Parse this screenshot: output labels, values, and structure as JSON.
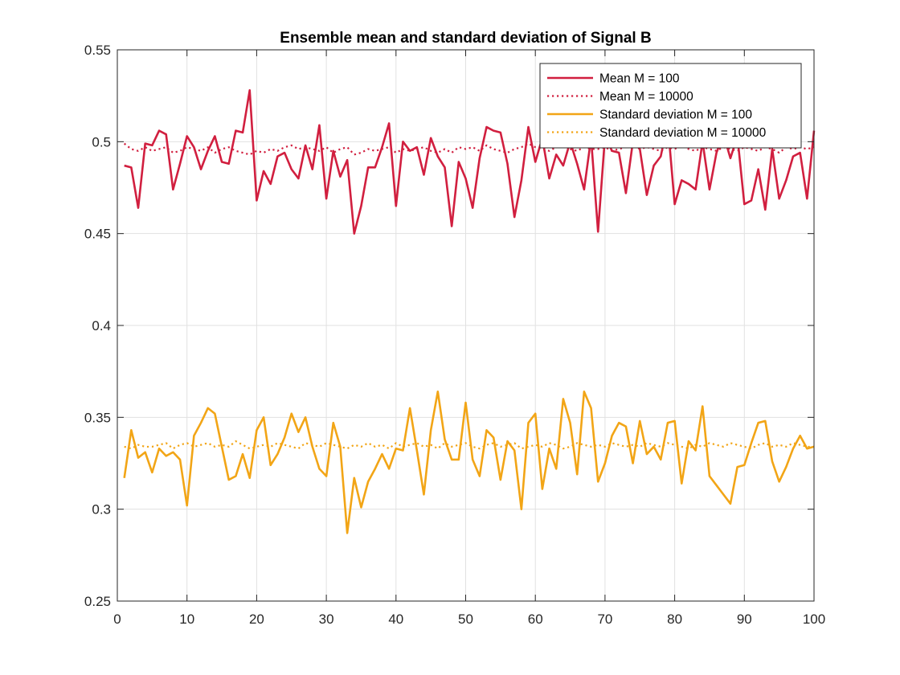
{
  "chart_data": {
    "type": "line",
    "title": "Ensemble mean and standard deviation of Signal B",
    "xlabel": "",
    "ylabel": "",
    "xlim": [
      0,
      100
    ],
    "ylim": [
      0.25,
      0.55
    ],
    "xticks": [
      0,
      10,
      20,
      30,
      40,
      50,
      60,
      70,
      80,
      90,
      100
    ],
    "yticks": [
      0.25,
      0.3,
      0.35,
      0.4,
      0.45,
      0.5,
      0.55
    ],
    "xtick_labels": [
      "0",
      "10",
      "20",
      "30",
      "40",
      "50",
      "60",
      "70",
      "80",
      "90",
      "100"
    ],
    "ytick_labels": [
      "0.25",
      "0.3",
      "0.35",
      "0.4",
      "0.45",
      "0.5",
      "0.55"
    ],
    "grid": true,
    "legend_position": "top-right",
    "x": [
      1,
      2,
      3,
      4,
      5,
      6,
      7,
      8,
      9,
      10,
      11,
      12,
      13,
      14,
      15,
      16,
      17,
      18,
      19,
      20,
      21,
      22,
      23,
      24,
      25,
      26,
      27,
      28,
      29,
      30,
      31,
      32,
      33,
      34,
      35,
      36,
      37,
      38,
      39,
      40,
      41,
      42,
      43,
      44,
      45,
      46,
      47,
      48,
      49,
      50,
      51,
      52,
      53,
      54,
      55,
      56,
      57,
      58,
      59,
      60,
      61,
      62,
      63,
      64,
      65,
      66,
      67,
      68,
      69,
      70,
      71,
      72,
      73,
      74,
      75,
      76,
      77,
      78,
      79,
      80,
      81,
      82,
      83,
      84,
      85,
      86,
      87,
      88,
      89,
      90,
      91,
      92,
      93,
      94,
      95,
      96,
      97,
      98,
      99,
      100
    ],
    "series": [
      {
        "name": "Mean M = 100",
        "color": "#d11f3f",
        "style": "solid",
        "values": [
          0.487,
          0.486,
          0.464,
          0.499,
          0.498,
          0.506,
          0.504,
          0.474,
          0.488,
          0.503,
          0.497,
          0.485,
          0.495,
          0.503,
          0.489,
          0.488,
          0.506,
          0.505,
          0.528,
          0.468,
          0.484,
          0.477,
          0.492,
          0.494,
          0.485,
          0.48,
          0.498,
          0.485,
          0.509,
          0.469,
          0.495,
          0.481,
          0.49,
          0.45,
          0.465,
          0.486,
          0.486,
          0.497,
          0.51,
          0.465,
          0.5,
          0.495,
          0.497,
          0.482,
          0.502,
          0.492,
          0.486,
          0.454,
          0.489,
          0.48,
          0.464,
          0.491,
          0.508,
          0.506,
          0.505,
          0.488,
          0.459,
          0.479,
          0.508,
          0.489,
          0.502,
          0.48,
          0.493,
          0.487,
          0.5,
          0.488,
          0.474,
          0.502,
          0.451,
          0.503,
          0.495,
          0.494,
          0.472,
          0.5,
          0.496,
          0.471,
          0.487,
          0.492,
          0.51,
          0.466,
          0.479,
          0.477,
          0.474,
          0.5,
          0.474,
          0.494,
          0.504,
          0.491,
          0.503,
          0.466,
          0.468,
          0.485,
          0.463,
          0.496,
          0.469,
          0.479,
          0.492,
          0.494,
          0.469,
          0.506
        ]
      },
      {
        "name": "Mean M = 10000",
        "color": "#d11f3f",
        "style": "dotted",
        "values": [
          0.499,
          0.496,
          0.495,
          0.497,
          0.495,
          0.496,
          0.497,
          0.494,
          0.495,
          0.497,
          0.496,
          0.495,
          0.497,
          0.494,
          0.496,
          0.497,
          0.495,
          0.494,
          0.493,
          0.495,
          0.494,
          0.496,
          0.495,
          0.497,
          0.498,
          0.496,
          0.497,
          0.496,
          0.495,
          0.497,
          0.494,
          0.496,
          0.497,
          0.493,
          0.494,
          0.496,
          0.495,
          0.496,
          0.497,
          0.494,
          0.496,
          0.495,
          0.496,
          0.497,
          0.495,
          0.494,
          0.496,
          0.494,
          0.497,
          0.496,
          0.497,
          0.495,
          0.498,
          0.496,
          0.495,
          0.494,
          0.496,
          0.497,
          0.499,
          0.497,
          0.496,
          0.495,
          0.497,
          0.498,
          0.496,
          0.495,
          0.497,
          0.496,
          0.496,
          0.497,
          0.495,
          0.496,
          0.497,
          0.498,
          0.496,
          0.497,
          0.496,
          0.495,
          0.497,
          0.496,
          0.498,
          0.496,
          0.495,
          0.497,
          0.496,
          0.495,
          0.497,
          0.496,
          0.495,
          0.497,
          0.496,
          0.495,
          0.497,
          0.496,
          0.494,
          0.497,
          0.496,
          0.497,
          0.496,
          0.497
        ]
      },
      {
        "name": "Standard deviation M = 100",
        "color": "#f2a516",
        "style": "solid",
        "values": [
          0.317,
          0.343,
          0.328,
          0.331,
          0.32,
          0.333,
          0.329,
          0.331,
          0.327,
          0.302,
          0.34,
          0.347,
          0.355,
          0.352,
          0.334,
          0.316,
          0.318,
          0.33,
          0.317,
          0.343,
          0.35,
          0.324,
          0.33,
          0.339,
          0.352,
          0.342,
          0.35,
          0.334,
          0.322,
          0.318,
          0.347,
          0.334,
          0.287,
          0.317,
          0.301,
          0.315,
          0.322,
          0.33,
          0.322,
          0.333,
          0.332,
          0.355,
          0.332,
          0.308,
          0.343,
          0.364,
          0.338,
          0.327,
          0.327,
          0.358,
          0.327,
          0.318,
          0.343,
          0.339,
          0.316,
          0.337,
          0.332,
          0.3,
          0.347,
          0.352,
          0.311,
          0.333,
          0.322,
          0.36,
          0.347,
          0.319,
          0.364,
          0.355,
          0.315,
          0.325,
          0.34,
          0.347,
          0.345,
          0.325,
          0.348,
          0.33,
          0.334,
          0.327,
          0.347,
          0.348,
          0.314,
          0.337,
          0.332,
          0.356,
          0.318,
          0.313,
          0.308,
          0.303,
          0.323,
          0.324,
          0.336,
          0.347,
          0.348,
          0.326,
          0.315,
          0.323,
          0.333,
          0.34,
          0.333,
          0.334
        ]
      },
      {
        "name": "Standard deviation M = 10000",
        "color": "#f2a516",
        "style": "dotted",
        "values": [
          0.334,
          0.333,
          0.335,
          0.334,
          0.334,
          0.335,
          0.336,
          0.333,
          0.335,
          0.336,
          0.334,
          0.335,
          0.336,
          0.334,
          0.335,
          0.334,
          0.337,
          0.335,
          0.333,
          0.334,
          0.335,
          0.334,
          0.336,
          0.335,
          0.334,
          0.333,
          0.336,
          0.335,
          0.334,
          0.336,
          0.335,
          0.334,
          0.333,
          0.335,
          0.334,
          0.336,
          0.334,
          0.335,
          0.333,
          0.336,
          0.334,
          0.335,
          0.336,
          0.334,
          0.335,
          0.333,
          0.336,
          0.334,
          0.335,
          0.336,
          0.334,
          0.333,
          0.335,
          0.336,
          0.334,
          0.335,
          0.336,
          0.333,
          0.334,
          0.335,
          0.334,
          0.336,
          0.335,
          0.333,
          0.334,
          0.336,
          0.335,
          0.334,
          0.335,
          0.334,
          0.336,
          0.335,
          0.334,
          0.335,
          0.334,
          0.336,
          0.335,
          0.334,
          0.336,
          0.335,
          0.334,
          0.333,
          0.335,
          0.334,
          0.336,
          0.335,
          0.334,
          0.336,
          0.335,
          0.334,
          0.333,
          0.335,
          0.336,
          0.334,
          0.335,
          0.334,
          0.336,
          0.335,
          0.334,
          0.334
        ]
      }
    ]
  }
}
